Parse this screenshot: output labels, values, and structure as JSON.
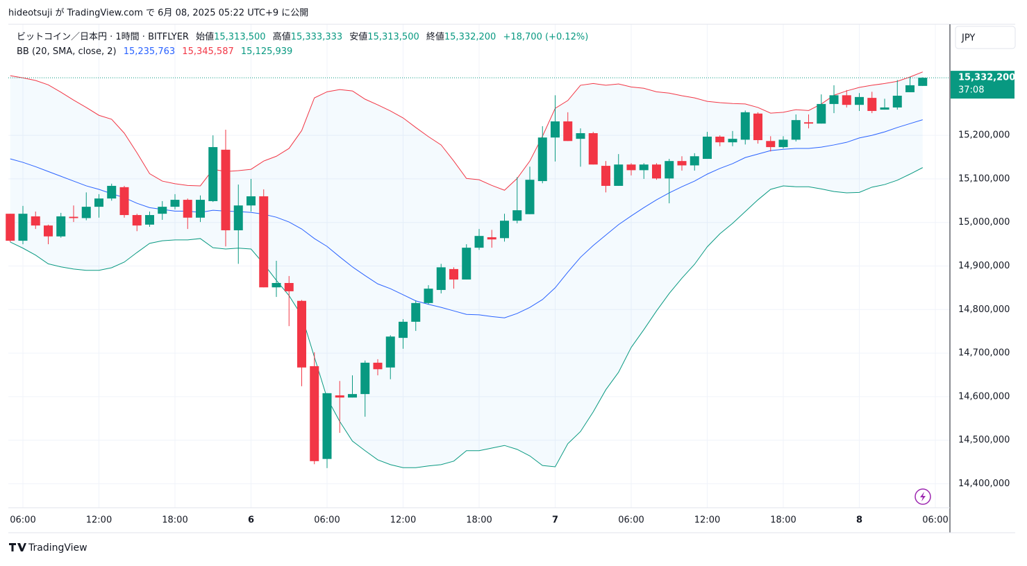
{
  "header": "hideotsuji が TradingView.com で 6月 08, 2025 05:22 UTC+9 に公開",
  "footer": "TradingView",
  "chart_data": {
    "type": "candlestick",
    "symbol": "ビットコイン／日本円 · 1時間 · BITFLYER",
    "legend": {
      "open_label": "始値",
      "open": "15,313,500",
      "high_label": "高値",
      "high": "15,333,333",
      "low_label": "安値",
      "low": "15,313,500",
      "close_label": "終値",
      "close": "15,332,200",
      "change": "+18,700 (+0.12%)"
    },
    "currency": "JPY",
    "price_label": "15,332,200",
    "countdown": "37:08",
    "up_color": "#089981",
    "down_color": "#f23645",
    "open": [
      15020000,
      14958000,
      15014000,
      14993000,
      14968000,
      15013000,
      15010000,
      15036000,
      15055000,
      15081000,
      15017000,
      14995000,
      15020000,
      15036000,
      15052000,
      15011000,
      15049000,
      15167000,
      14982000,
      15039000,
      15060000,
      14851000,
      14861000,
      14820000,
      14670000,
      14457000,
      14603000,
      14598000,
      14606000,
      14678000,
      14667000,
      14735000,
      14772000,
      14815000,
      14845000,
      14893000,
      14869000,
      14942000,
      14966000,
      14964000,
      15004000,
      15019000,
      15095000,
      15195000,
      15232000,
      15192000,
      15205000,
      15130000,
      15084000,
      15133000,
      15120000,
      15133000,
      15101000,
      15141000,
      15131000,
      15146000,
      15197000,
      15184000,
      15190000,
      15250000,
      15187000,
      15173000,
      15190000,
      15230000,
      15227000,
      15272000,
      15292000,
      15270000,
      15286000,
      15259000,
      15264000,
      15299000,
      15313500
    ],
    "high": [
      15020000,
      15038000,
      15025000,
      14995000,
      15022000,
      15039000,
      15069000,
      15065000,
      15089000,
      15084000,
      15020000,
      15025000,
      15049000,
      15065000,
      15055000,
      15062000,
      15200000,
      15213000,
      15087000,
      15100000,
      15076000,
      14912000,
      14877000,
      14822000,
      14702000,
      14608000,
      14636000,
      14649000,
      14683000,
      14686000,
      14741000,
      14778000,
      14821000,
      14856000,
      14905000,
      14897000,
      14950000,
      14985000,
      14983000,
      15020000,
      15104000,
      15128000,
      15221000,
      15292000,
      15253000,
      15216000,
      15208000,
      15141000,
      15157000,
      15136000,
      15136000,
      15136000,
      15146000,
      15152000,
      15159000,
      15208000,
      15200000,
      15210000,
      15257000,
      15253000,
      15198000,
      15198000,
      15248000,
      15248000,
      15294000,
      15315000,
      15304000,
      15297000,
      15300000,
      15284000,
      15327000,
      15334000,
      15333333
    ],
    "low": [
      14955000,
      14950000,
      14985000,
      14950000,
      14965000,
      15001000,
      15005000,
      15011000,
      15050000,
      15011000,
      14980000,
      14990000,
      15006000,
      15030000,
      14985000,
      15001000,
      15047000,
      14945000,
      14905000,
      15025000,
      14851000,
      14829000,
      14762000,
      14624000,
      14445000,
      14436000,
      14517000,
      14598000,
      14554000,
      14649000,
      14640000,
      14710000,
      14751000,
      14812000,
      14837000,
      14848000,
      14869000,
      14937000,
      14942000,
      14956000,
      14998000,
      15019000,
      15090000,
      15140000,
      15187000,
      15128000,
      15133000,
      15069000,
      15084000,
      15108000,
      15100000,
      15098000,
      15044000,
      15119000,
      15119000,
      15146000,
      15175000,
      15175000,
      15179000,
      15181000,
      15163000,
      15170000,
      15186000,
      15216000,
      15227000,
      15251000,
      15264000,
      15256000,
      15251000,
      15259000,
      15259000,
      15299000,
      15313500
    ],
    "close": [
      14958000,
      15020000,
      14993000,
      14968000,
      15014000,
      15010000,
      15036000,
      15055000,
      15084000,
      15017000,
      14993000,
      15017000,
      15036000,
      15052000,
      15011000,
      15052000,
      15173000,
      14982000,
      15039000,
      15060000,
      14851000,
      14861000,
      14842000,
      14667000,
      14452000,
      14608000,
      14598000,
      14606000,
      14678000,
      14663000,
      14738000,
      14772000,
      14815000,
      14848000,
      14897000,
      14869000,
      14942000,
      14969000,
      14961000,
      15004000,
      15028000,
      15098000,
      15195000,
      15232000,
      15187000,
      15205000,
      15133000,
      15084000,
      15133000,
      15120000,
      15133000,
      15101000,
      15141000,
      15131000,
      15152000,
      15197000,
      15184000,
      15192000,
      15253000,
      15189000,
      15173000,
      15190000,
      15235000,
      15227000,
      15272000,
      15292000,
      15270000,
      15288000,
      15256000,
      15264000,
      15291000,
      15315000,
      15332200
    ],
    "bb": {
      "label": "BB (20, SMA, close, 2)",
      "basis": {
        "color": "#2962ff",
        "value_label": "15,235,763",
        "values": [
          15146000,
          15138000,
          15128000,
          15117000,
          15106000,
          15095000,
          15084000,
          15076000,
          15066000,
          15057000,
          15044000,
          15034000,
          15030000,
          15026000,
          15026000,
          15023000,
          15028000,
          15026000,
          15025000,
          15023000,
          15019000,
          15012000,
          15001000,
          14985000,
          14963000,
          14945000,
          14921000,
          14898000,
          14878000,
          14859000,
          14848000,
          14834000,
          14820000,
          14812000,
          14805000,
          14797000,
          14789000,
          14788000,
          14784000,
          14781000,
          14791000,
          14805000,
          14823000,
          14850000,
          14886000,
          14920000,
          14947000,
          14971000,
          14995000,
          15015000,
          15034000,
          15052000,
          15068000,
          15082000,
          15095000,
          15111000,
          15124000,
          15135000,
          15149000,
          15157000,
          15165000,
          15168000,
          15170000,
          15170000,
          15173000,
          15178000,
          15184000,
          15194000,
          15200000,
          15208000,
          15218000,
          15227000,
          15235763
        ]
      },
      "upper": {
        "color": "#f23645",
        "value_label": "15,345,587",
        "values": [
          15337000,
          15332000,
          15326000,
          15316000,
          15299000,
          15281000,
          15264000,
          15246000,
          15237000,
          15205000,
          15160000,
          15112000,
          15095000,
          15089000,
          15085000,
          15084000,
          15122000,
          15117000,
          15119000,
          15122000,
          15141000,
          15152000,
          15170000,
          15211000,
          15286000,
          15300000,
          15305000,
          15302000,
          15283000,
          15270000,
          15256000,
          15240000,
          15218000,
          15197000,
          15178000,
          15141000,
          15101000,
          15098000,
          15085000,
          15074000,
          15101000,
          15141000,
          15198000,
          15262000,
          15280000,
          15315000,
          15319000,
          15315000,
          15318000,
          15311000,
          15308000,
          15300000,
          15297000,
          15291000,
          15286000,
          15278000,
          15275000,
          15273000,
          15272000,
          15264000,
          15251000,
          15253000,
          15259000,
          15257000,
          15272000,
          15292000,
          15302000,
          15310000,
          15315000,
          15319000,
          15324000,
          15334000,
          15345587
        ]
      },
      "lower": {
        "color": "#089981",
        "value_label": "15,125,939",
        "values": [
          14955000,
          14941000,
          14925000,
          14905000,
          14898000,
          14893000,
          14890000,
          14890000,
          14896000,
          14909000,
          14931000,
          14952000,
          14958000,
          14960000,
          14960000,
          14963000,
          14942000,
          14939000,
          14941000,
          14939000,
          14905000,
          14867000,
          14832000,
          14786000,
          14691000,
          14597000,
          14543000,
          14498000,
          14476000,
          14455000,
          14444000,
          14437000,
          14437000,
          14441000,
          14444000,
          14452000,
          14476000,
          14476000,
          14482000,
          14488000,
          14479000,
          14464000,
          14442000,
          14439000,
          14492000,
          14520000,
          14565000,
          14616000,
          14656000,
          14713000,
          14754000,
          14797000,
          14837000,
          14872000,
          14904000,
          14944000,
          14974000,
          14998000,
          15025000,
          15052000,
          15076000,
          15084000,
          15082000,
          15082000,
          15077000,
          15071000,
          15068000,
          15069000,
          15081000,
          15087000,
          15097000,
          15111000,
          15125939
        ]
      }
    },
    "xlim": [
      -0.15,
      74.15
    ],
    "xticks": [
      {
        "value": 1,
        "label": "06:00"
      },
      {
        "value": 7,
        "label": "12:00"
      },
      {
        "value": 13,
        "label": "18:00"
      },
      {
        "value": 19,
        "label": "6"
      },
      {
        "value": 25,
        "label": "06:00"
      },
      {
        "value": 31,
        "label": "12:00"
      },
      {
        "value": 37,
        "label": "18:00"
      },
      {
        "value": 43,
        "label": "7"
      },
      {
        "value": 49,
        "label": "06:00"
      },
      {
        "value": 55,
        "label": "12:00"
      },
      {
        "value": 61,
        "label": "18:00"
      },
      {
        "value": 67,
        "label": "8"
      },
      {
        "value": 73,
        "label": "06:00"
      }
    ],
    "ylim": [
      14345000,
      15455000
    ],
    "yticks": [
      {
        "value": 14400000,
        "label": "14,400,000"
      },
      {
        "value": 14500000,
        "label": "14,500,000"
      },
      {
        "value": 14600000,
        "label": "14,600,000"
      },
      {
        "value": 14700000,
        "label": "14,700,000"
      },
      {
        "value": 14800000,
        "label": "14,800,000"
      },
      {
        "value": 14900000,
        "label": "14,900,000"
      },
      {
        "value": 15000000,
        "label": "15,000,000"
      },
      {
        "value": 15100000,
        "label": "15,100,000"
      },
      {
        "value": 15200000,
        "label": "15,200,000"
      }
    ],
    "grid": true
  }
}
